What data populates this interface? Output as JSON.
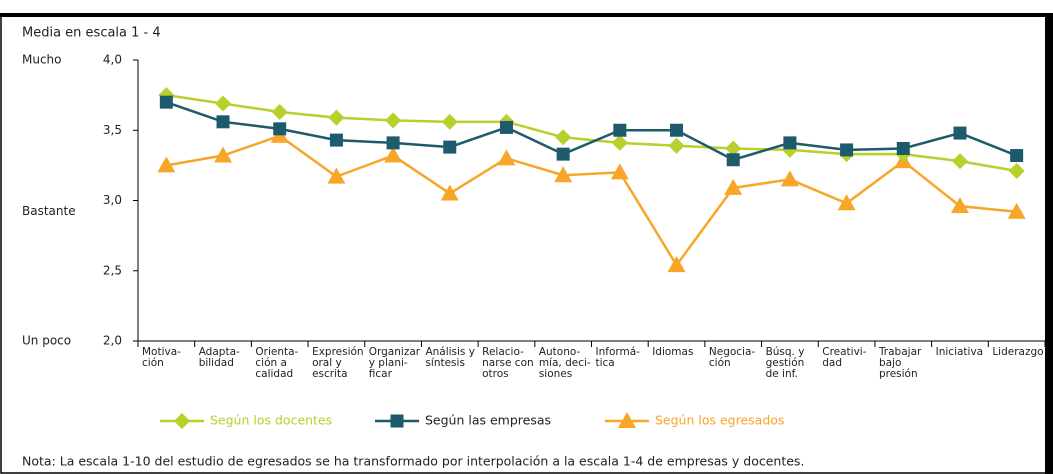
{
  "chart_data": {
    "type": "line",
    "title": "Media en escala 1 - 4",
    "y_annotations": [
      {
        "value": 4,
        "label": "Mucho"
      },
      {
        "value": 3,
        "label": "Bastante"
      },
      {
        "value": 2,
        "label": "Un poco"
      }
    ],
    "categories": [
      "Motiva-\nción",
      "Adapta-\nbilidad",
      "Orienta-\nción a\ncalidad",
      "Expresión\noral y\nescrita",
      "Organizar\ny plani-\nficar",
      "Análisis y\nsíntesis",
      "Relacio-\nnarse con\notros",
      "Autono-\nmía, deci-\nsiones",
      "Informá-\ntica",
      "Idiomas",
      "Negocia-\nción",
      "Búsq. y\ngestión\nde inf.",
      "Creativi-\ndad",
      "Trabajar\nbajo\npresión",
      "Iniciativa",
      "Liderazgo"
    ],
    "series": [
      {
        "name": "Según los docentes",
        "color": "#b8cf2c",
        "marker": "diamond",
        "values": [
          3.75,
          3.69,
          3.63,
          3.59,
          3.57,
          3.56,
          3.56,
          3.45,
          3.41,
          3.39,
          3.37,
          3.36,
          3.33,
          3.33,
          3.28,
          3.21
        ]
      },
      {
        "name": "Según las empresas",
        "color": "#1d5a6c",
        "marker": "square",
        "values": [
          3.7,
          3.56,
          3.51,
          3.43,
          3.41,
          3.38,
          3.52,
          3.33,
          3.5,
          3.5,
          3.29,
          3.41,
          3.36,
          3.37,
          3.48,
          3.32
        ]
      },
      {
        "name": "Según los egresados",
        "color": "#f7a627",
        "marker": "triangle",
        "values": [
          3.25,
          3.32,
          3.46,
          3.17,
          3.32,
          3.05,
          3.3,
          3.18,
          3.2,
          2.54,
          3.09,
          3.15,
          2.98,
          3.28,
          2.96,
          2.92
        ]
      }
    ],
    "ylim": [
      2,
      4
    ],
    "yticks": [
      {
        "value": 2,
        "label": "2,0"
      },
      {
        "value": 2.5,
        "label": "2,5"
      },
      {
        "value": 3,
        "label": "3,0"
      },
      {
        "value": 3.5,
        "label": "3,5"
      },
      {
        "value": 4,
        "label": "4,0"
      }
    ],
    "grid": false,
    "legend": "bottom",
    "note": "Nota: La escala 1-10 del estudio de egresados se ha transformado por interpolación a la escala 1-4 de empresas y docentes."
  }
}
